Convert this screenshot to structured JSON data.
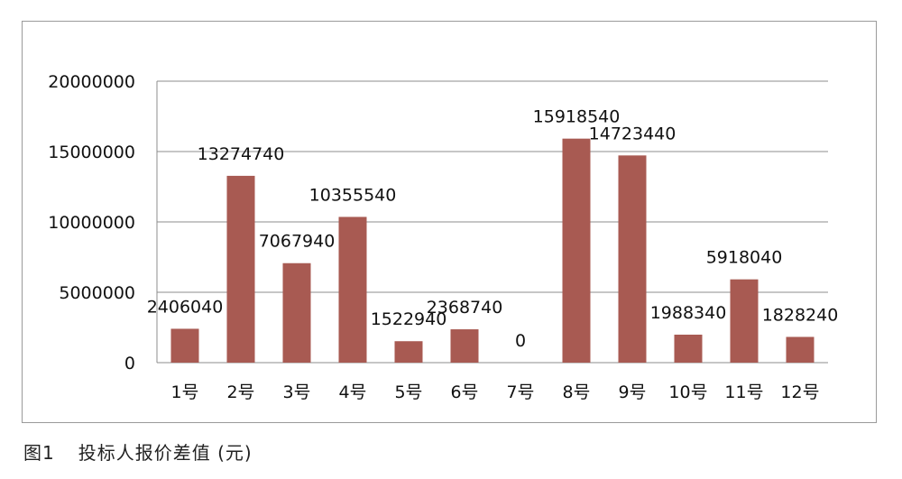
{
  "chart_data": {
    "type": "bar",
    "categories": [
      "1号",
      "2号",
      "3号",
      "4号",
      "5号",
      "6号",
      "7号",
      "8号",
      "9号",
      "10号",
      "11号",
      "12号"
    ],
    "values": [
      2406040,
      13274740,
      7067940,
      10355540,
      1522940,
      2368740,
      0,
      15918540,
      14723440,
      1988340,
      5918040,
      1828240
    ],
    "data_labels": [
      "2406040",
      "13274740",
      "7067940",
      "10355540",
      "1522940",
      "2368740",
      "0",
      "15918540",
      "14723440",
      "1988340",
      "5918040",
      "1828240"
    ],
    "y_ticks": [
      "0",
      "5000000",
      "10000000",
      "15000000",
      "20000000"
    ],
    "ylim": [
      0,
      20000000
    ],
    "grid": true,
    "bar_color": "#a85a52",
    "title": "",
    "xlabel": "",
    "ylabel": ""
  },
  "caption": {
    "figure_no": "图1",
    "text": "投标人报价差值 (元)"
  }
}
